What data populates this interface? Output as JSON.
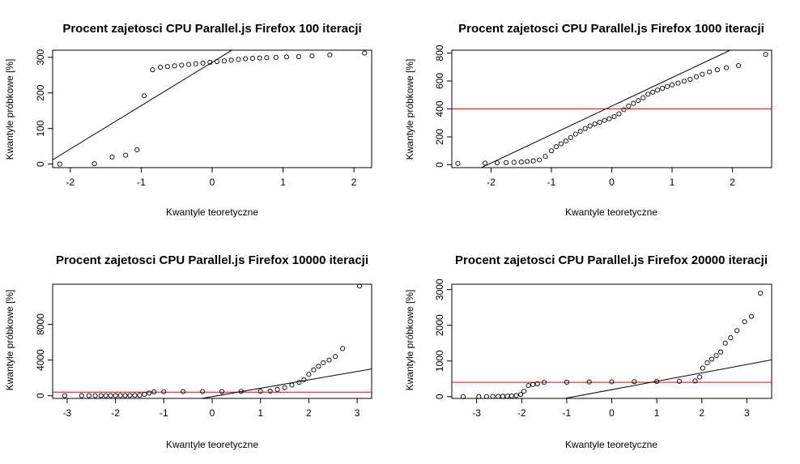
{
  "chart_data": [
    {
      "type": "scatter",
      "title": "Procent zajetosci CPU Parallel.js Firefox  100 iteracji",
      "xlabel": "Kwantyle teoretyczne",
      "ylabel": "Kwantyle próbkowe [%]",
      "xlim": [
        -2.25,
        2.25
      ],
      "ylim": [
        -10,
        320
      ],
      "xticks": [
        -2,
        -1,
        0,
        1,
        2
      ],
      "yticks": [
        0,
        100,
        200,
        300
      ],
      "points": [
        [
          -2.15,
          0
        ],
        [
          -1.66,
          1
        ],
        [
          -1.41,
          20
        ],
        [
          -1.22,
          25
        ],
        [
          -1.06,
          40
        ],
        [
          -0.96,
          192
        ],
        [
          -0.84,
          265
        ],
        [
          -0.73,
          272
        ],
        [
          -0.63,
          274
        ],
        [
          -0.53,
          276
        ],
        [
          -0.43,
          278
        ],
        [
          -0.33,
          280
        ],
        [
          -0.23,
          282
        ],
        [
          -0.13,
          284
        ],
        [
          -0.03,
          286
        ],
        [
          0.07,
          288
        ],
        [
          0.17,
          290
        ],
        [
          0.27,
          292
        ],
        [
          0.37,
          294
        ],
        [
          0.47,
          296
        ],
        [
          0.57,
          297
        ],
        [
          0.67,
          298
        ],
        [
          0.77,
          299
        ],
        [
          0.9,
          300
        ],
        [
          1.05,
          301
        ],
        [
          1.22,
          302
        ],
        [
          1.41,
          304
        ],
        [
          1.66,
          307
        ],
        [
          2.15,
          312
        ]
      ],
      "ref_line": [
        [
          -2.25,
          12
        ],
        [
          2.25,
          560
        ]
      ],
      "hline": null
    },
    {
      "type": "scatter",
      "title": "Procent zajetosci CPU Parallel.js Firefox  1000 iteracji",
      "xlabel": "Kwantyle teoretyczne",
      "ylabel": "Kwantyle próbkowe [%]",
      "xlim": [
        -2.65,
        2.65
      ],
      "ylim": [
        -20,
        820
      ],
      "xticks": [
        -2,
        -1,
        0,
        1,
        2
      ],
      "yticks": [
        0,
        200,
        400,
        600,
        800
      ],
      "points": [
        [
          -2.55,
          10
        ],
        [
          -2.1,
          12
        ],
        [
          -1.9,
          14
        ],
        [
          -1.75,
          16
        ],
        [
          -1.62,
          18
        ],
        [
          -1.5,
          20
        ],
        [
          -1.4,
          24
        ],
        [
          -1.3,
          28
        ],
        [
          -1.2,
          35
        ],
        [
          -1.1,
          60
        ],
        [
          -1.0,
          100
        ],
        [
          -0.92,
          130
        ],
        [
          -0.84,
          150
        ],
        [
          -0.76,
          170
        ],
        [
          -0.68,
          195
        ],
        [
          -0.6,
          220
        ],
        [
          -0.52,
          240
        ],
        [
          -0.44,
          260
        ],
        [
          -0.36,
          278
        ],
        [
          -0.28,
          292
        ],
        [
          -0.2,
          305
        ],
        [
          -0.12,
          318
        ],
        [
          -0.04,
          330
        ],
        [
          0.04,
          345
        ],
        [
          0.12,
          365
        ],
        [
          0.2,
          395
        ],
        [
          0.28,
          420
        ],
        [
          0.36,
          440
        ],
        [
          0.44,
          460
        ],
        [
          0.52,
          480
        ],
        [
          0.6,
          505
        ],
        [
          0.68,
          520
        ],
        [
          0.76,
          535
        ],
        [
          0.84,
          548
        ],
        [
          0.92,
          560
        ],
        [
          1.0,
          572
        ],
        [
          1.1,
          585
        ],
        [
          1.2,
          598
        ],
        [
          1.3,
          612
        ],
        [
          1.4,
          630
        ],
        [
          1.5,
          648
        ],
        [
          1.62,
          665
        ],
        [
          1.75,
          680
        ],
        [
          1.9,
          695
        ],
        [
          2.1,
          710
        ],
        [
          2.55,
          790
        ]
      ],
      "ref_line": [
        [
          -2.65,
          -120
        ],
        [
          2.65,
          960
        ]
      ],
      "hline": 400
    },
    {
      "type": "scatter",
      "title": "Procent zajetosci CPU Parallel.js Firefox  10000 iteracji",
      "xlabel": "Kwantyle teoretyczne",
      "ylabel": "Kwantyle próbkowe [%]",
      "xlim": [
        -3.3,
        3.3
      ],
      "ylim": [
        -300,
        12500
      ],
      "xticks": [
        -3,
        -2,
        -1,
        0,
        1,
        2,
        3
      ],
      "yticks": [
        0,
        4000,
        8000
      ],
      "yticklabels": [
        "0",
        "4000",
        "8000"
      ],
      "points": [
        [
          -3.05,
          5
        ],
        [
          -2.7,
          8
        ],
        [
          -2.55,
          10
        ],
        [
          -2.42,
          12
        ],
        [
          -2.3,
          14
        ],
        [
          -2.2,
          16
        ],
        [
          -2.1,
          18
        ],
        [
          -2.0,
          20
        ],
        [
          -1.9,
          22
        ],
        [
          -1.8,
          25
        ],
        [
          -1.7,
          30
        ],
        [
          -1.6,
          40
        ],
        [
          -1.5,
          60
        ],
        [
          -1.4,
          150
        ],
        [
          -1.3,
          300
        ],
        [
          -1.2,
          420
        ],
        [
          -1.0,
          450
        ],
        [
          -0.6,
          460
        ],
        [
          -0.2,
          470
        ],
        [
          0.2,
          480
        ],
        [
          0.6,
          490
        ],
        [
          1.0,
          500
        ],
        [
          1.2,
          520
        ],
        [
          1.35,
          700
        ],
        [
          1.5,
          900
        ],
        [
          1.65,
          1200
        ],
        [
          1.8,
          1500
        ],
        [
          1.9,
          1800
        ],
        [
          2.0,
          2400
        ],
        [
          2.1,
          2900
        ],
        [
          2.2,
          3300
        ],
        [
          2.3,
          3700
        ],
        [
          2.42,
          4000
        ],
        [
          2.55,
          4400
        ],
        [
          2.7,
          5300
        ],
        [
          3.05,
          12300
        ]
      ],
      "ref_line": [
        [
          -3.3,
          -3200
        ],
        [
          3.3,
          3000
        ]
      ],
      "hline": 400
    },
    {
      "type": "scatter",
      "title": "Procent zajetosci CPU Parallel.js Firefox  20000 iteracji",
      "xlabel": "Kwantyle teoretyczne",
      "ylabel": "Kwantyle próbkowe [%]",
      "xlim": [
        -3.55,
        3.55
      ],
      "ylim": [
        -50,
        3150
      ],
      "xticks": [
        -3,
        -2,
        -1,
        0,
        1,
        2,
        3
      ],
      "yticks": [
        0,
        1000,
        2000,
        3000
      ],
      "points": [
        [
          -3.3,
          0
        ],
        [
          -2.95,
          2
        ],
        [
          -2.78,
          4
        ],
        [
          -2.64,
          6
        ],
        [
          -2.52,
          8
        ],
        [
          -2.42,
          10
        ],
        [
          -2.32,
          14
        ],
        [
          -2.22,
          20
        ],
        [
          -2.12,
          30
        ],
        [
          -2.02,
          60
        ],
        [
          -1.95,
          150
        ],
        [
          -1.85,
          310
        ],
        [
          -1.75,
          340
        ],
        [
          -1.65,
          360
        ],
        [
          -1.5,
          400
        ],
        [
          -1.0,
          405
        ],
        [
          -0.5,
          410
        ],
        [
          0.0,
          415
        ],
        [
          0.5,
          420
        ],
        [
          1.0,
          425
        ],
        [
          1.5,
          430
        ],
        [
          1.85,
          440
        ],
        [
          1.95,
          550
        ],
        [
          2.02,
          800
        ],
        [
          2.12,
          950
        ],
        [
          2.22,
          1050
        ],
        [
          2.32,
          1150
        ],
        [
          2.42,
          1250
        ],
        [
          2.52,
          1500
        ],
        [
          2.64,
          1650
        ],
        [
          2.78,
          1850
        ],
        [
          2.95,
          2100
        ],
        [
          3.1,
          2250
        ],
        [
          3.3,
          2900
        ]
      ],
      "ref_line": [
        [
          -3.55,
          -640
        ],
        [
          3.55,
          1030
        ]
      ],
      "hline": 400
    }
  ]
}
